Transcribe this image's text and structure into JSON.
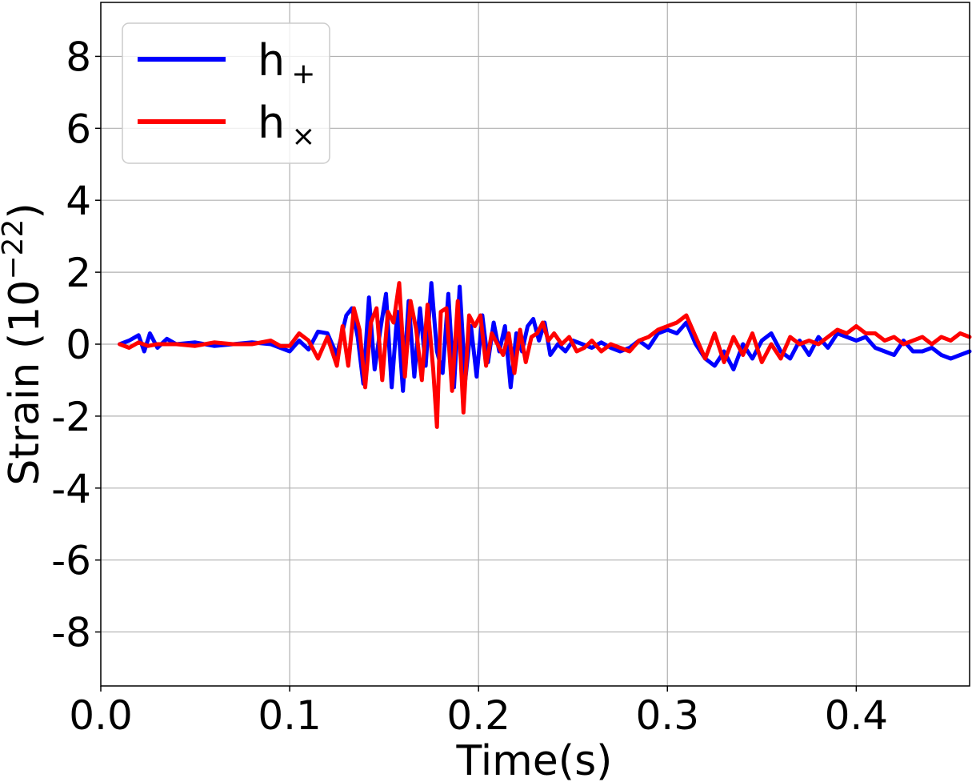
{
  "chart_data": {
    "type": "line",
    "xlabel": "Time(s)",
    "ylabel_main": "Strain (10",
    "ylabel_exp": "−22",
    "ylabel_close": ")",
    "xlim": [
      0.0,
      0.46
    ],
    "ylim": [
      -9.5,
      9.5
    ],
    "xticks": [
      0.0,
      0.1,
      0.2,
      0.3,
      0.4
    ],
    "xtick_labels": [
      "0.0",
      "0.1",
      "0.2",
      "0.3",
      "0.4"
    ],
    "yticks": [
      -8,
      -6,
      -4,
      -2,
      0,
      2,
      4,
      6,
      8
    ],
    "ytick_labels": [
      "-8",
      "-6",
      "-4",
      "-2",
      "0",
      "2",
      "4",
      "6",
      "8"
    ],
    "grid": true,
    "legend_position": "top-left",
    "series": [
      {
        "name": "h₊",
        "legend_base": "h",
        "legend_sub": "+",
        "color": "#0000ff",
        "x": [
          0.01,
          0.015,
          0.02,
          0.023,
          0.026,
          0.03,
          0.035,
          0.04,
          0.05,
          0.06,
          0.07,
          0.08,
          0.09,
          0.095,
          0.1,
          0.105,
          0.11,
          0.115,
          0.12,
          0.125,
          0.13,
          0.133,
          0.136,
          0.139,
          0.142,
          0.145,
          0.148,
          0.151,
          0.154,
          0.157,
          0.16,
          0.163,
          0.166,
          0.169,
          0.172,
          0.175,
          0.178,
          0.181,
          0.184,
          0.187,
          0.19,
          0.193,
          0.196,
          0.199,
          0.202,
          0.205,
          0.208,
          0.211,
          0.214,
          0.217,
          0.22,
          0.223,
          0.226,
          0.229,
          0.232,
          0.235,
          0.238,
          0.242,
          0.246,
          0.25,
          0.255,
          0.26,
          0.265,
          0.27,
          0.275,
          0.28,
          0.285,
          0.29,
          0.295,
          0.3,
          0.305,
          0.31,
          0.315,
          0.32,
          0.325,
          0.33,
          0.335,
          0.34,
          0.345,
          0.35,
          0.355,
          0.36,
          0.365,
          0.37,
          0.375,
          0.38,
          0.385,
          0.39,
          0.395,
          0.4,
          0.405,
          0.41,
          0.415,
          0.42,
          0.425,
          0.43,
          0.435,
          0.44,
          0.445,
          0.45,
          0.455,
          0.46
        ],
        "y": [
          0.0,
          0.1,
          0.25,
          -0.2,
          0.3,
          -0.1,
          0.15,
          0.0,
          0.05,
          -0.05,
          0.0,
          0.05,
          0.0,
          -0.1,
          -0.2,
          0.1,
          -0.15,
          0.35,
          0.3,
          -0.3,
          0.8,
          1.0,
          0.2,
          -1.1,
          1.3,
          -0.7,
          0.4,
          1.4,
          -1.2,
          0.9,
          -1.3,
          1.2,
          -0.9,
          1.0,
          -0.6,
          1.7,
          -0.2,
          -0.8,
          1.4,
          -1.2,
          1.6,
          -1.0,
          0.5,
          -0.9,
          0.8,
          -0.5,
          0.6,
          -0.2,
          0.5,
          -1.2,
          0.3,
          -0.2,
          0.5,
          0.7,
          0.1,
          0.6,
          -0.3,
          0.0,
          -0.2,
          0.1,
          0.0,
          -0.1,
          0.05,
          -0.1,
          -0.2,
          -0.1,
          0.1,
          -0.1,
          0.3,
          0.4,
          0.3,
          0.6,
          0.0,
          -0.4,
          -0.6,
          -0.2,
          -0.7,
          0.0,
          -0.4,
          0.1,
          0.3,
          -0.2,
          -0.4,
          0.1,
          -0.3,
          0.2,
          -0.1,
          0.3,
          0.2,
          0.1,
          0.2,
          -0.1,
          -0.2,
          -0.3,
          0.1,
          -0.2,
          -0.2,
          -0.1,
          -0.3,
          -0.4,
          -0.3,
          -0.2
        ]
      },
      {
        "name": "h×",
        "legend_base": "h",
        "legend_sub": "×",
        "color": "#ff0000",
        "x": [
          0.01,
          0.015,
          0.02,
          0.025,
          0.03,
          0.04,
          0.05,
          0.06,
          0.07,
          0.08,
          0.09,
          0.095,
          0.1,
          0.105,
          0.11,
          0.115,
          0.12,
          0.125,
          0.128,
          0.131,
          0.134,
          0.137,
          0.14,
          0.143,
          0.146,
          0.149,
          0.152,
          0.155,
          0.158,
          0.161,
          0.164,
          0.167,
          0.17,
          0.173,
          0.176,
          0.178,
          0.18,
          0.183,
          0.186,
          0.189,
          0.192,
          0.195,
          0.198,
          0.201,
          0.204,
          0.207,
          0.21,
          0.213,
          0.216,
          0.219,
          0.222,
          0.225,
          0.228,
          0.231,
          0.234,
          0.237,
          0.24,
          0.244,
          0.248,
          0.252,
          0.256,
          0.26,
          0.265,
          0.27,
          0.275,
          0.28,
          0.285,
          0.29,
          0.295,
          0.3,
          0.305,
          0.31,
          0.315,
          0.32,
          0.325,
          0.33,
          0.335,
          0.34,
          0.345,
          0.35,
          0.355,
          0.36,
          0.365,
          0.37,
          0.375,
          0.38,
          0.385,
          0.39,
          0.395,
          0.4,
          0.405,
          0.41,
          0.415,
          0.42,
          0.425,
          0.43,
          0.435,
          0.44,
          0.445,
          0.45,
          0.455,
          0.46
        ],
        "y": [
          0.0,
          -0.1,
          0.05,
          -0.05,
          0.0,
          0.0,
          -0.05,
          0.05,
          0.0,
          0.0,
          0.1,
          -0.05,
          -0.05,
          0.3,
          0.1,
          -0.4,
          0.2,
          -0.6,
          0.5,
          -0.6,
          1.0,
          0.4,
          -1.2,
          0.6,
          1.0,
          -1.0,
          0.9,
          0.6,
          1.7,
          -0.9,
          1.2,
          0.4,
          -1.0,
          1.1,
          -0.7,
          -2.3,
          0.9,
          1.0,
          -1.3,
          1.2,
          -1.9,
          0.8,
          0.5,
          0.8,
          -0.6,
          0.3,
          0.0,
          -0.3,
          0.3,
          -0.8,
          0.4,
          -0.5,
          0.2,
          0.3,
          0.6,
          0.1,
          0.3,
          0.0,
          0.2,
          -0.2,
          -0.1,
          0.1,
          -0.2,
          0.0,
          -0.1,
          -0.2,
          0.1,
          0.2,
          0.4,
          0.5,
          0.6,
          0.8,
          0.2,
          -0.4,
          0.3,
          -0.5,
          0.2,
          -0.3,
          0.3,
          -0.5,
          0.0,
          -0.4,
          0.2,
          0.0,
          0.1,
          0.0,
          0.2,
          0.4,
          0.3,
          0.5,
          0.3,
          0.3,
          0.1,
          0.2,
          0.0,
          0.1,
          0.2,
          0.0,
          0.2,
          0.1,
          0.3,
          0.2
        ]
      }
    ]
  }
}
